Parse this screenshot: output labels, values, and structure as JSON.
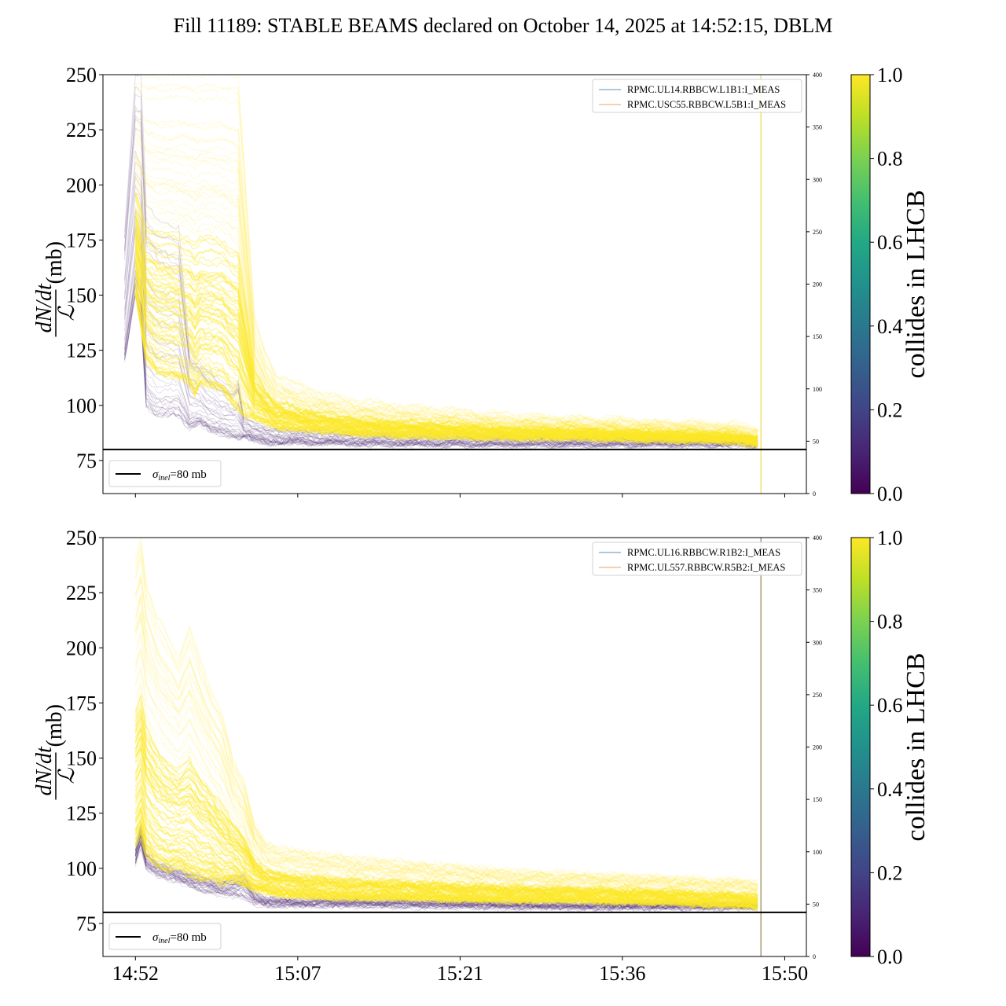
{
  "title": "Fill 11189: STABLE BEAMS declared on October 14, 2025 at 14:52:15, DBLM",
  "chart_data": [
    {
      "type": "line",
      "panel": "top",
      "ylabel_fraction_num": "dN/dt",
      "ylabel_fraction_den": "ℒ",
      "ylabel_unit": "(mb)",
      "ylim": [
        60,
        250
      ],
      "yticks": [
        75,
        100,
        125,
        150,
        175,
        200,
        225,
        250
      ],
      "secondary_ylim": [
        0,
        400
      ],
      "secondary_yticks": [
        0,
        50,
        100,
        150,
        200,
        250,
        300,
        350,
        400
      ],
      "xlim_minutes": [
        -3,
        62
      ],
      "xticks": [
        {
          "min": 0,
          "label": "14:52"
        },
        {
          "min": 15,
          "label": "15:07"
        },
        {
          "min": 30,
          "label": "15:21"
        },
        {
          "min": 45,
          "label": "15:36"
        },
        {
          "min": 60,
          "label": "15:50"
        }
      ],
      "show_xtick_labels": false,
      "reference_line": {
        "y": 80,
        "label_sym": "σ",
        "label_sub": "inel",
        "label_rest": "=80 mb",
        "color": "#000000"
      },
      "vertical_marker_min": 57.8,
      "vertical_marker_color": "#e8d31c",
      "legend": [
        {
          "label": "RPMC.UL14.RBBCW.L1B1:I_MEAS",
          "color": "#7aa6cf"
        },
        {
          "label": "RPMC.USC55.RBBCW.L5B1:I_MEAS",
          "color": "#f5b47a"
        }
      ],
      "legend_position": "top-right",
      "series_groups": [
        {
          "name": "colliding-in-LHCb (value 1.0)",
          "color": "#fde725",
          "envelope": {
            "t": [
              0,
              1,
              2,
              4,
              5,
              5.5,
              6,
              7,
              8,
              9,
              9.5,
              10,
              11,
              12,
              13,
              15,
              18,
              20,
              25,
              30,
              35,
              40,
              45,
              50,
              55,
              57.5
            ],
            "low": [
              150,
              120,
              115,
              112,
              110,
              105,
              110,
              108,
              107,
              100,
              98,
              96,
              94,
              92,
              90,
              89,
              88,
              87,
              86,
              85.5,
              85,
              85,
              84.5,
              84,
              83.5,
              82
            ],
            "high": [
              250,
              250,
              250,
              250,
              250,
              250,
              250,
              250,
              250,
              250,
              250,
              215,
              140,
              125,
              115,
              110,
              105,
              103,
              100,
              98,
              96,
              95,
              94,
              93,
              92,
              90
            ]
          }
        },
        {
          "name": "not-colliding-in-LHCb (value 0.0)",
          "color": "#5b3a7a",
          "envelope": {
            "t": [
              -1,
              0,
              0.5,
              1,
              2,
              4,
              5,
              6,
              7,
              8,
              9,
              9.5,
              10,
              11,
              12,
              15,
              20,
              30,
              40,
              50,
              57.5
            ],
            "low": [
              120,
              150,
              140,
              100,
              95,
              95,
              90,
              92,
              88,
              87,
              86,
              85,
              86,
              84,
              83,
              83,
              82.5,
              82,
              82,
              82,
              82
            ],
            "high": [
              180,
              250,
              250,
              190,
              185,
              180,
              125,
              120,
              115,
              110,
              108,
              112,
              95,
              92,
              90,
              89,
              88,
              87,
              86,
              86,
              85
            ]
          }
        }
      ]
    },
    {
      "type": "line",
      "panel": "bottom",
      "ylabel_fraction_num": "dN/dt",
      "ylabel_fraction_den": "ℒ",
      "ylabel_unit": "(mb)",
      "ylim": [
        60,
        250
      ],
      "yticks": [
        75,
        100,
        125,
        150,
        175,
        200,
        225,
        250
      ],
      "secondary_ylim": [
        0,
        400
      ],
      "secondary_yticks": [
        0,
        50,
        100,
        150,
        200,
        250,
        300,
        350,
        400
      ],
      "xlim_minutes": [
        -3,
        62
      ],
      "xticks": [
        {
          "min": 0,
          "label": "14:52"
        },
        {
          "min": 15,
          "label": "15:07"
        },
        {
          "min": 30,
          "label": "15:21"
        },
        {
          "min": 45,
          "label": "15:36"
        },
        {
          "min": 60,
          "label": "15:50"
        }
      ],
      "show_xtick_labels": true,
      "reference_line": {
        "y": 80,
        "label_sym": "σ",
        "label_sub": "inel",
        "label_rest": "=80 mb",
        "color": "#000000"
      },
      "vertical_marker_min": 57.8,
      "vertical_marker_color": "#7a6a30",
      "legend": [
        {
          "label": "RPMC.UL16.RBBCW.R1B2:I_MEAS",
          "color": "#7aa6cf"
        },
        {
          "label": "RPMC.UL557.RBBCW.R5B2:I_MEAS",
          "color": "#f5b47a"
        }
      ],
      "legend_position": "top-right",
      "series_groups": [
        {
          "name": "colliding-in-LHCb (value 1.0)",
          "color": "#fde725",
          "envelope": {
            "t": [
              0,
              0.5,
              1,
              2,
              3,
              4,
              5,
              6,
              7,
              8,
              9,
              10,
              11,
              12,
              13,
              15,
              20,
              25,
              30,
              35,
              40,
              45,
              50,
              53,
              55,
              57.5
            ],
            "low": [
              110,
              115,
              105,
              100,
              98,
              100,
              96,
              94,
              95,
              92,
              94,
              92,
              90,
              89,
              88,
              87,
              86,
              86,
              85.5,
              85,
              85,
              84.5,
              84,
              83,
              83,
              82
            ],
            "high": [
              240,
              250,
              230,
              215,
              205,
              195,
              210,
              195,
              180,
              170,
              150,
              140,
              120,
              112,
              110,
              108,
              105,
              103,
              101,
              99,
              98,
              97,
              96,
              95,
              95,
              94
            ]
          }
        },
        {
          "name": "not-colliding-in-LHCb (value 0.0)",
          "color": "#5b3a7a",
          "envelope": {
            "t": [
              0,
              0.5,
              1,
              2,
              4,
              6,
              8,
              10,
              11,
              12,
              15,
              20,
              30,
              40,
              50,
              57.5
            ],
            "low": [
              102,
              110,
              100,
              97,
              94,
              90,
              88,
              87,
              84,
              83,
              83,
              83,
              82.5,
              82,
              82,
              82
            ],
            "high": [
              110,
              121,
              108,
              103,
              100,
              97,
              95,
              98,
              90,
              87,
              86,
              86,
              85,
              84,
              84,
              84
            ]
          }
        }
      ]
    }
  ],
  "colorbars": [
    {
      "label": "collides in LHCB",
      "ticks": [
        "0.0",
        "0.2",
        "0.4",
        "0.6",
        "0.8",
        "1.0"
      ],
      "colormap": "viridis",
      "range": [
        0.0,
        1.0
      ]
    },
    {
      "label": "collides in LHCB",
      "ticks": [
        "0.0",
        "0.2",
        "0.4",
        "0.6",
        "0.8",
        "1.0"
      ],
      "colormap": "viridis",
      "range": [
        0.0,
        1.0
      ]
    }
  ]
}
